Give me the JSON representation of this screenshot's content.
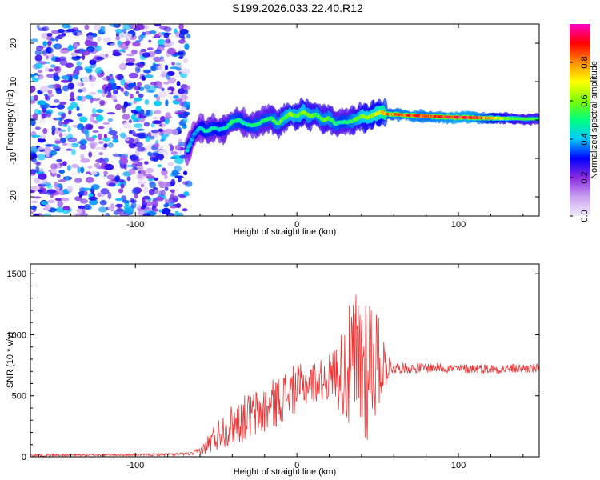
{
  "title": "S199.2026.033.22.40.R12",
  "chart_data": [
    {
      "type": "heatmap",
      "xlabel": "Height of straight line (km)",
      "ylabel": "Frequency (Hz)",
      "xlim": [
        -165,
        150
      ],
      "ylim": [
        -25,
        25
      ],
      "xticks": [
        -100,
        0,
        100
      ],
      "yticks": [
        -20,
        -10,
        0,
        10,
        20
      ],
      "colorbar": {
        "label": "Normalized spectral amplitude",
        "range": [
          0,
          1
        ],
        "ticks": [
          "0.0",
          "0.2",
          "0.4",
          "0.6",
          "0.8"
        ],
        "colors": [
          "#f2ecfb",
          "#8a2be2",
          "#0000ff",
          "#00c8ff",
          "#00ff7f",
          "#7fff00",
          "#ffff00",
          "#ff8c00",
          "#ff0000",
          "#ff00c8"
        ]
      },
      "noise_region": {
        "x_range": [
          -165,
          -67
        ],
        "max_amplitude": 0.35
      },
      "signal_ridge": {
        "x": [
          -68,
          -64,
          -60,
          -56,
          -52,
          -48,
          -44,
          -40,
          -36,
          -32,
          -28,
          -24,
          -20,
          -16,
          -12,
          -8,
          -4,
          0,
          4,
          8,
          12,
          16,
          20,
          24,
          28,
          32,
          36,
          40,
          44,
          48,
          52,
          56,
          60,
          70,
          80,
          90,
          100,
          110,
          120,
          130,
          140,
          150
        ],
        "freq": [
          -8,
          -4,
          -2,
          -3,
          -2,
          -2.5,
          -2,
          -0.5,
          0,
          -1,
          -1.5,
          -1,
          0,
          0.5,
          -1,
          0.5,
          1.5,
          1,
          2,
          1,
          1.5,
          0,
          0.5,
          -1,
          -0.5,
          -0.5,
          0,
          1,
          0.5,
          1.5,
          2,
          1.5,
          1.5,
          1.2,
          1,
          0.8,
          0.7,
          0.6,
          0.5,
          0.4,
          0.3,
          0.3
        ],
        "amplitude": [
          0.35,
          0.3,
          0.35,
          0.4,
          0.4,
          0.38,
          0.4,
          0.45,
          0.42,
          0.4,
          0.42,
          0.45,
          0.42,
          0.45,
          0.48,
          0.5,
          0.55,
          0.52,
          0.55,
          0.5,
          0.5,
          0.48,
          0.5,
          0.45,
          0.42,
          0.45,
          0.5,
          0.55,
          0.6,
          0.6,
          0.65,
          0.75,
          0.8,
          0.85,
          0.82,
          0.85,
          0.9,
          0.88,
          0.7,
          0.55,
          0.5,
          0.45
        ]
      }
    },
    {
      "type": "line",
      "xlabel": "Height of straight line (km)",
      "ylabel": "SNR (10 * v/v)",
      "xlim": [
        -165,
        150
      ],
      "ylim": [
        0,
        1580
      ],
      "xticks": [
        -100,
        0,
        100
      ],
      "yticks": [
        0,
        500,
        1000,
        1500
      ],
      "series": [
        {
          "color": "#ee3333",
          "x": [
            -165,
            -140,
            -120,
            -100,
            -80,
            -65,
            -58,
            -54,
            -50,
            -45,
            -40,
            -35,
            -30,
            -25,
            -20,
            -15,
            -10,
            -5,
            0,
            5,
            10,
            15,
            20,
            25,
            30,
            34,
            38,
            42,
            46,
            50,
            54,
            58,
            62,
            70,
            80,
            90,
            100,
            110,
            120,
            130,
            140,
            150
          ],
          "y": [
            12,
            14,
            15,
            16,
            18,
            25,
            60,
            120,
            170,
            230,
            260,
            300,
            330,
            350,
            380,
            430,
            470,
            530,
            560,
            590,
            610,
            630,
            650,
            680,
            700,
            720,
            750,
            780,
            800,
            780,
            760,
            740,
            730,
            725,
            730,
            730,
            720,
            725,
            720,
            720,
            725,
            720
          ],
          "amplitude": [
            10,
            10,
            10,
            10,
            12,
            15,
            45,
            110,
            140,
            170,
            190,
            210,
            220,
            230,
            230,
            230,
            230,
            230,
            220,
            200,
            190,
            190,
            220,
            300,
            500,
            650,
            780,
            800,
            700,
            450,
            250,
            80,
            50,
            45,
            45,
            45,
            45,
            45,
            45,
            45,
            45,
            45
          ]
        }
      ]
    }
  ]
}
